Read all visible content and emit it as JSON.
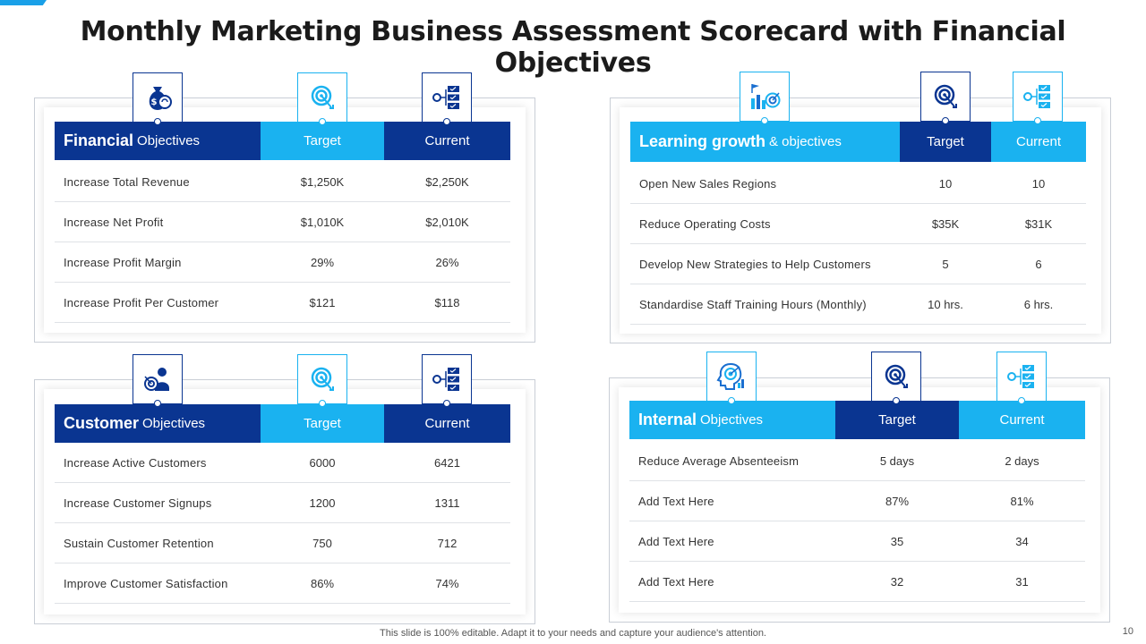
{
  "title": "Monthly Marketing Business Assessment Scorecard with Financial Objectives",
  "colors": {
    "dark_blue": "#0a3591",
    "light_blue": "#1ab2f0"
  },
  "panels": {
    "financial": {
      "title_bold": "Financial",
      "title_light": "Objectives",
      "col_target": "Target",
      "col_current": "Current",
      "icons": [
        "money-bag-icon",
        "target-icon",
        "checklist-icon"
      ],
      "rows": [
        {
          "label": "Increase Total Revenue",
          "target": "$1,250K",
          "current": "$2,250K"
        },
        {
          "label": "Increase Net Profit",
          "target": "$1,010K",
          "current": "$2,010K"
        },
        {
          "label": "Increase Profit Margin",
          "target": "29%",
          "current": "26%"
        },
        {
          "label": "Increase Profit Per Customer",
          "target": "$121",
          "current": "$118"
        }
      ]
    },
    "learning": {
      "title_bold": "Learning growth",
      "title_light": "& objectives",
      "col_target": "Target",
      "col_current": "Current",
      "icons": [
        "growth-chart-icon",
        "target-icon",
        "checklist-icon"
      ],
      "rows": [
        {
          "label": "Open New Sales Regions",
          "target": "10",
          "current": "10"
        },
        {
          "label": "Reduce Operating Costs",
          "target": "$35K",
          "current": "$31K"
        },
        {
          "label": "Develop New Strategies to Help Customers",
          "target": "5",
          "current": "6"
        },
        {
          "label": "Standardise Staff Training Hours (Monthly)",
          "target": "10 hrs.",
          "current": "6 hrs."
        }
      ]
    },
    "customer": {
      "title_bold": "Customer",
      "title_light": "Objectives",
      "col_target": "Target",
      "col_current": "Current",
      "icons": [
        "customer-target-icon",
        "target-icon",
        "checklist-icon"
      ],
      "rows": [
        {
          "label": "Increase Active Customers",
          "target": "6000",
          "current": "6421"
        },
        {
          "label": "Increase Customer Signups",
          "target": "1200",
          "current": "1311"
        },
        {
          "label": "Sustain Customer Retention",
          "target": "750",
          "current": "712"
        },
        {
          "label": "Improve  Customer Satisfaction",
          "target": "86%",
          "current": "74%"
        }
      ]
    },
    "internal": {
      "title_bold": "Internal",
      "title_light": "Objectives",
      "col_target": "Target",
      "col_current": "Current",
      "icons": [
        "head-target-icon",
        "target-icon",
        "checklist-icon"
      ],
      "rows": [
        {
          "label": "Reduce Average  Absenteeism",
          "target": "5 days",
          "current": "2 days"
        },
        {
          "label": "Add Text Here",
          "target": "87%",
          "current": "81%"
        },
        {
          "label": "Add Text Here",
          "target": "35",
          "current": "34"
        },
        {
          "label": "Add Text Here",
          "target": "32",
          "current": "31"
        }
      ]
    }
  },
  "footer": "This slide is 100% editable. Adapt it to your needs and capture your audience's attention.",
  "page_number": "10"
}
